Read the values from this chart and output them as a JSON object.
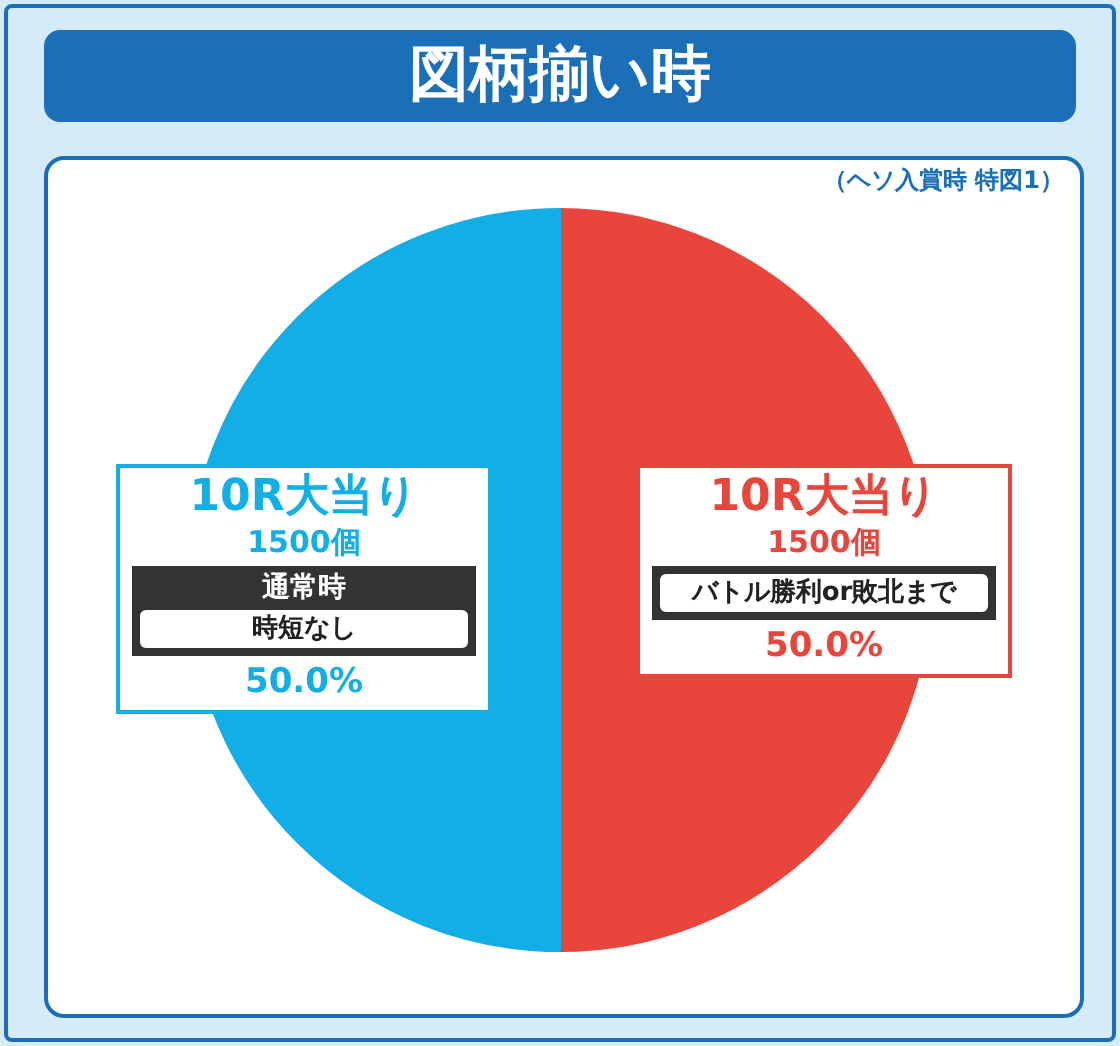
{
  "chart_data": {
    "type": "pie",
    "title": "図柄揃い時",
    "subtitle": "（ヘソ入賞時 特図1）",
    "categories": [
      "10R大当り",
      "10R大当り"
    ],
    "values": [
      50.0,
      50.0
    ],
    "value_labels": [
      "50.0%",
      "50.0%"
    ],
    "colors": [
      "#e8453c",
      "#12aee6"
    ],
    "annotations": [
      "1500個",
      "バトル勝利or敗北まで",
      "1500個",
      "通常時",
      "時短なし"
    ],
    "legend": false
  }
}
